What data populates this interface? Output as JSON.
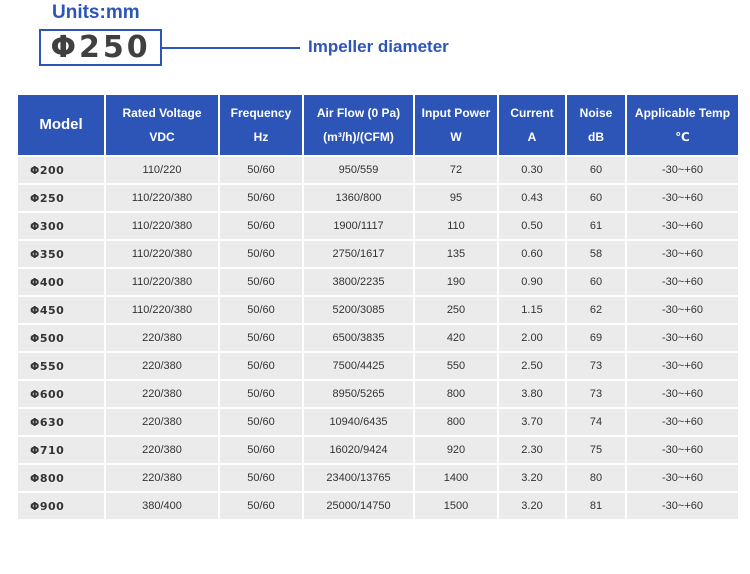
{
  "header": {
    "units": "Units:mm",
    "example_model": "Φ250",
    "impeller_label": "Impeller diameter"
  },
  "colors": {
    "accent": "#2d55b8",
    "row_background": "#ebebeb",
    "header_text": "#ffffff"
  },
  "table": {
    "columns": [
      {
        "title": "Model",
        "unit": ""
      },
      {
        "title": "Rated Voltage",
        "unit": "VDC"
      },
      {
        "title": "Frequency",
        "unit": "Hz"
      },
      {
        "title": "Air Flow (0 Pa)",
        "unit": "(m³/h)/(CFM)"
      },
      {
        "title": "Input Power",
        "unit": "W"
      },
      {
        "title": "Current",
        "unit": "A"
      },
      {
        "title": "Noise",
        "unit": "dB"
      },
      {
        "title": "Applicable Temp",
        "unit": "℃"
      }
    ],
    "rows": [
      [
        "Φ200",
        "110/220",
        "50/60",
        "950/559",
        "72",
        "0.30",
        "60",
        "-30~+60"
      ],
      [
        "Φ250",
        "110/220/380",
        "50/60",
        "1360/800",
        "95",
        "0.43",
        "60",
        "-30~+60"
      ],
      [
        "Φ300",
        "110/220/380",
        "50/60",
        "1900/1117",
        "110",
        "0.50",
        "61",
        "-30~+60"
      ],
      [
        "Φ350",
        "110/220/380",
        "50/60",
        "2750/1617",
        "135",
        "0.60",
        "58",
        "-30~+60"
      ],
      [
        "Φ400",
        "110/220/380",
        "50/60",
        "3800/2235",
        "190",
        "0.90",
        "60",
        "-30~+60"
      ],
      [
        "Φ450",
        "110/220/380",
        "50/60",
        "5200/3085",
        "250",
        "1.15",
        "62",
        "-30~+60"
      ],
      [
        "Φ500",
        "220/380",
        "50/60",
        "6500/3835",
        "420",
        "2.00",
        "69",
        "-30~+60"
      ],
      [
        "Φ550",
        "220/380",
        "50/60",
        "7500/4425",
        "550",
        "2.50",
        "73",
        "-30~+60"
      ],
      [
        "Φ600",
        "220/380",
        "50/60",
        "8950/5265",
        "800",
        "3.80",
        "73",
        "-30~+60"
      ],
      [
        "Φ630",
        "220/380",
        "50/60",
        "10940/6435",
        "800",
        "3.70",
        "74",
        "-30~+60"
      ],
      [
        "Φ710",
        "220/380",
        "50/60",
        "16020/9424",
        "920",
        "2.30",
        "75",
        "-30~+60"
      ],
      [
        "Φ800",
        "220/380",
        "50/60",
        "23400/13765",
        "1400",
        "3.20",
        "80",
        "-30~+60"
      ],
      [
        "Φ900",
        "380/400",
        "50/60",
        "25000/14750",
        "1500",
        "3.20",
        "81",
        "-30~+60"
      ]
    ]
  }
}
